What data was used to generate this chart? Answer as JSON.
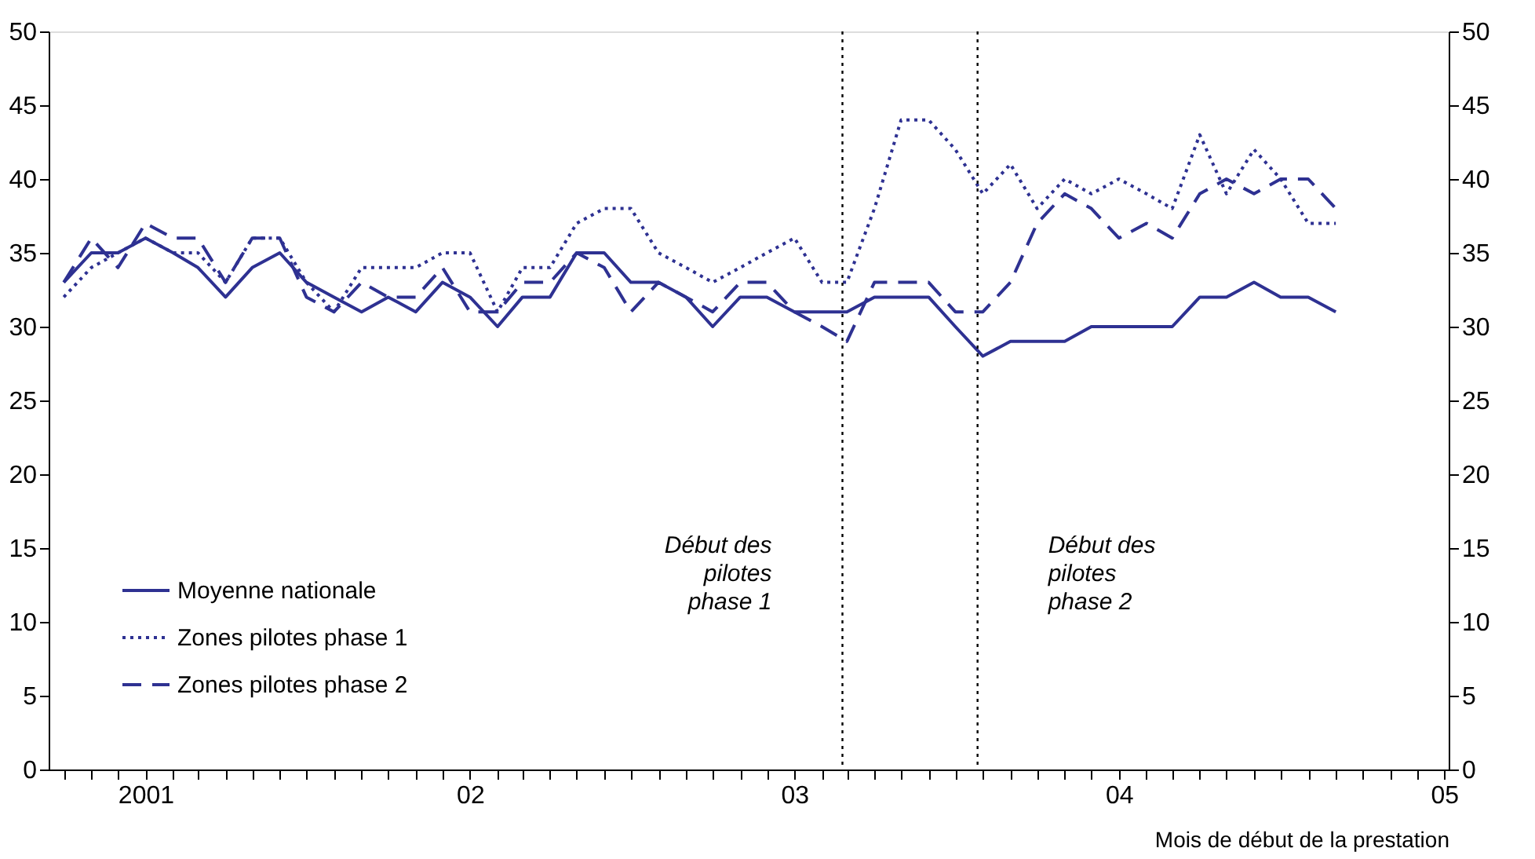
{
  "chart_data": {
    "type": "line",
    "xlabel": "Mois de début de la prestation",
    "x": [
      "2000-10",
      "2000-11",
      "2000-12",
      "2001-01",
      "2001-02",
      "2001-03",
      "2001-04",
      "2001-05",
      "2001-06",
      "2001-07",
      "2001-08",
      "2001-09",
      "2001-10",
      "2001-11",
      "2001-12",
      "2002-01",
      "2002-02",
      "2002-03",
      "2002-04",
      "2002-05",
      "2002-06",
      "2002-07",
      "2002-08",
      "2002-09",
      "2002-10",
      "2002-11",
      "2002-12",
      "2003-01",
      "2003-02",
      "2003-03",
      "2003-04",
      "2003-05",
      "2003-06",
      "2003-07",
      "2003-08",
      "2003-09",
      "2003-10",
      "2003-11",
      "2003-12",
      "2004-01",
      "2004-02",
      "2004-03",
      "2004-04",
      "2004-05",
      "2004-06",
      "2004-07",
      "2004-08",
      "2004-09"
    ],
    "series": [
      {
        "name": "Moyenne nationale",
        "color": "#2e3192",
        "line_style": "solid",
        "values": [
          33,
          35,
          35,
          36,
          35,
          34,
          32,
          34,
          35,
          33,
          32,
          31,
          32,
          31,
          33,
          32,
          30,
          32,
          32,
          35,
          35,
          33,
          33,
          32,
          30,
          32,
          32,
          31,
          31,
          31,
          32,
          32,
          32,
          30,
          28,
          29,
          29,
          29,
          30,
          30,
          30,
          30,
          32,
          32,
          33,
          32,
          32,
          31
        ]
      },
      {
        "name": "Zones pilotes phase 1",
        "color": "#2e3192",
        "line_style": "dotted",
        "values": [
          32,
          34,
          35,
          36,
          35,
          35,
          33,
          36,
          36,
          33,
          31,
          34,
          34,
          34,
          35,
          35,
          31,
          34,
          34,
          37,
          38,
          38,
          35,
          34,
          33,
          34,
          35,
          36,
          33,
          33,
          38,
          44,
          44,
          42,
          39,
          41,
          38,
          40,
          39,
          40,
          39,
          38,
          43,
          39,
          42,
          40,
          37,
          37
        ]
      },
      {
        "name": "Zones pilotes phase 2",
        "color": "#2e3192",
        "line_style": "dashed",
        "values": [
          33,
          36,
          34,
          37,
          36,
          36,
          33,
          36,
          36,
          32,
          31,
          33,
          32,
          32,
          34,
          31,
          31,
          33,
          33,
          35,
          34,
          31,
          33,
          32,
          31,
          33,
          33,
          31,
          30,
          29,
          33,
          33,
          33,
          31,
          31,
          33,
          37,
          39,
          38,
          36,
          37,
          36,
          39,
          40,
          39,
          40,
          40,
          38
        ]
      }
    ],
    "xlim": [
      "2000-09-14",
      "2005-01-06"
    ],
    "xticks": [
      {
        "value": "2000-10",
        "label": null
      },
      {
        "value": "2000-11",
        "label": null
      },
      {
        "value": "2000-12",
        "label": null
      },
      {
        "value": "2001-01",
        "label": "2001"
      },
      {
        "value": "2001-02",
        "label": null
      },
      {
        "value": "2001-03",
        "label": null
      },
      {
        "value": "2001-04",
        "label": null
      },
      {
        "value": "2001-05",
        "label": null
      },
      {
        "value": "2001-06",
        "label": null
      },
      {
        "value": "2001-07",
        "label": null
      },
      {
        "value": "2001-08",
        "label": null
      },
      {
        "value": "2001-09",
        "label": null
      },
      {
        "value": "2001-10",
        "label": null
      },
      {
        "value": "2001-11",
        "label": null
      },
      {
        "value": "2001-12",
        "label": null
      },
      {
        "value": "2002-01",
        "label": "02"
      },
      {
        "value": "2002-02",
        "label": null
      },
      {
        "value": "2002-03",
        "label": null
      },
      {
        "value": "2002-04",
        "label": null
      },
      {
        "value": "2002-05",
        "label": null
      },
      {
        "value": "2002-06",
        "label": null
      },
      {
        "value": "2002-07",
        "label": null
      },
      {
        "value": "2002-08",
        "label": null
      },
      {
        "value": "2002-09",
        "label": null
      },
      {
        "value": "2002-10",
        "label": null
      },
      {
        "value": "2002-11",
        "label": null
      },
      {
        "value": "2002-12",
        "label": null
      },
      {
        "value": "2003-01",
        "label": "03"
      },
      {
        "value": "2003-02",
        "label": null
      },
      {
        "value": "2003-03",
        "label": null
      },
      {
        "value": "2003-04",
        "label": null
      },
      {
        "value": "2003-05",
        "label": null
      },
      {
        "value": "2003-06",
        "label": null
      },
      {
        "value": "2003-07",
        "label": null
      },
      {
        "value": "2003-08",
        "label": null
      },
      {
        "value": "2003-09",
        "label": null
      },
      {
        "value": "2003-10",
        "label": null
      },
      {
        "value": "2003-11",
        "label": null
      },
      {
        "value": "2003-12",
        "label": null
      },
      {
        "value": "2004-01",
        "label": "04"
      },
      {
        "value": "2004-02",
        "label": null
      },
      {
        "value": "2004-03",
        "label": null
      },
      {
        "value": "2004-04",
        "label": null
      },
      {
        "value": "2004-05",
        "label": null
      },
      {
        "value": "2004-06",
        "label": null
      },
      {
        "value": "2004-07",
        "label": null
      },
      {
        "value": "2004-08",
        "label": null
      },
      {
        "value": "2004-09",
        "label": null
      },
      {
        "value": "2004-10",
        "label": null
      },
      {
        "value": "2004-11",
        "label": null
      },
      {
        "value": "2004-12",
        "label": null
      },
      {
        "value": "2005-01",
        "label": "05"
      }
    ],
    "ylim": [
      0,
      50
    ],
    "yticks": [
      0,
      5,
      10,
      15,
      20,
      25,
      30,
      35,
      40,
      45,
      50
    ],
    "y2lim": [
      0,
      50
    ],
    "y2ticks": [
      0,
      5,
      10,
      15,
      20,
      25,
      30,
      35,
      40,
      45,
      50
    ],
    "ref_lines": [
      {
        "axis": "x",
        "value": "2003-02-24",
        "label": "Début des\npilotes\nphase 1",
        "line_style": "dotted",
        "color": "#000000"
      },
      {
        "axis": "x",
        "value": "2003-07-26",
        "label": "Début des\npilotes\nphase 2",
        "line_style": "dotted",
        "color": "#000000"
      }
    ],
    "grid": false,
    "legend": "bottom left"
  }
}
